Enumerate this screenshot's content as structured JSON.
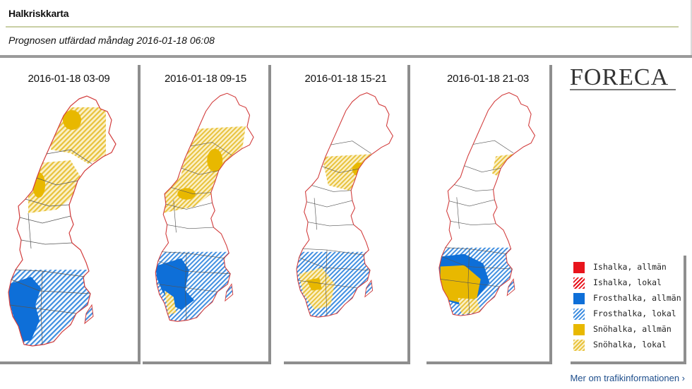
{
  "page": {
    "title": "Halkriskkarta",
    "issued": "Prognosen utfärdad måndag 2016-01-18 06:08"
  },
  "logo": {
    "text": "FORECA"
  },
  "map_data": {
    "panels": [
      {
        "time": "2016-01-18 03-09"
      },
      {
        "time": "2016-01-18 09-15"
      },
      {
        "time": "2016-01-18 15-21"
      },
      {
        "time": "2016-01-18 21-03"
      }
    ]
  },
  "legend": {
    "items": [
      {
        "label": "Ishalka, allmän",
        "color": "#e8141c",
        "pattern": "solid"
      },
      {
        "label": "Ishalka, lokal",
        "color": "#e8141c",
        "pattern": "hatch"
      },
      {
        "label": "Frosthalka, allmän",
        "color": "#0e6fd8",
        "pattern": "solid"
      },
      {
        "label": "Frosthalka, lokal",
        "color": "#3f8ee0",
        "pattern": "hatch"
      },
      {
        "label": "Snöhalka, allmän",
        "color": "#e8b800",
        "pattern": "solid"
      },
      {
        "label": "Snöhalka, lokal",
        "color": "#e8c23c",
        "pattern": "hatch"
      }
    ]
  },
  "footer": {
    "more_link": "Mer om trafikinformationen ›"
  },
  "colors": {
    "snow_solid": "#e8b800",
    "snow_hatch": "#e8c23c",
    "frost_solid": "#0e6fd8",
    "frost_hatch": "#3f8ee0",
    "ice": "#e8141c",
    "border": "#d23c3c"
  }
}
